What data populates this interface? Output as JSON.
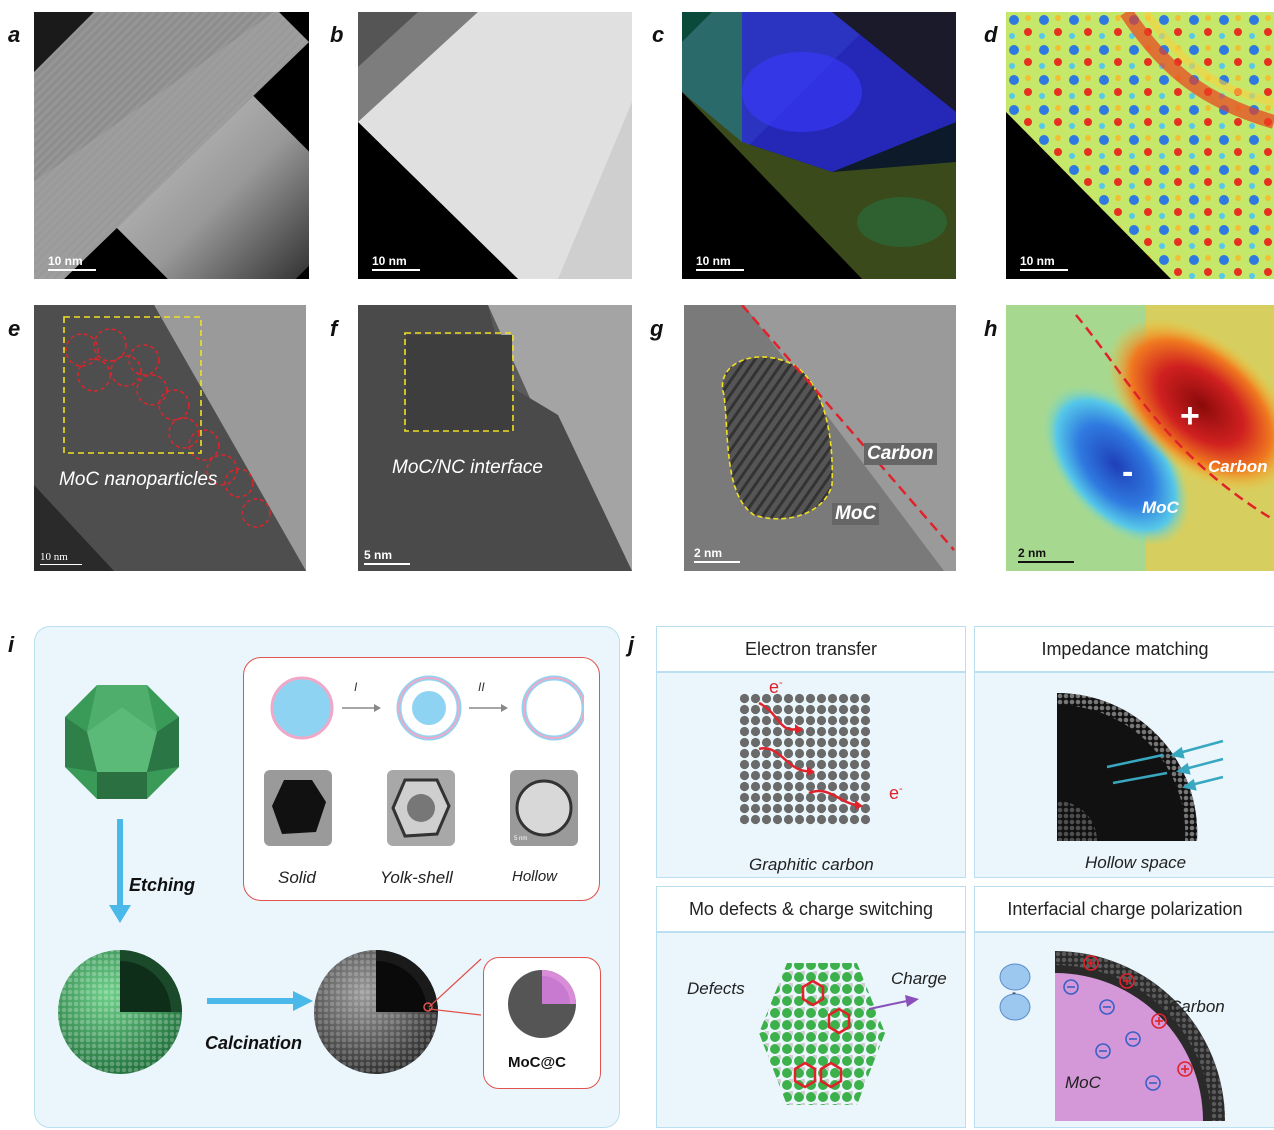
{
  "panel_labels": {
    "a": "a",
    "b": "b",
    "c": "c",
    "d": "d",
    "e": "e",
    "f": "f",
    "g": "g",
    "h": "h",
    "i": "i",
    "j": "j"
  },
  "scale_bars": {
    "a": "10 nm",
    "b": "10 nm",
    "c": "10 nm",
    "d": "10 nm",
    "e": "10 nm",
    "f": "5 nm",
    "g": "2 nm",
    "h": "2 nm"
  },
  "panel_e": {
    "label": "MoC nanoparticles"
  },
  "panel_f": {
    "label": "MoC/NC interface"
  },
  "panel_g": {
    "carbon": "Carbon",
    "moc": "MoC"
  },
  "panel_h": {
    "plus": "+",
    "minus": "-",
    "carbon": "Carbon",
    "moc": "MoC"
  },
  "panel_i": {
    "step1": "I",
    "step2": "II",
    "solid": "Solid",
    "yolk": "Yolk-shell",
    "hollow": "Hollow",
    "etching": "Etching",
    "calcination": "Calcination",
    "product": "MoC@C",
    "tem_scale": "5 nm"
  },
  "panel_j": {
    "electron_title": "Electron transfer",
    "electron_e1": "e",
    "electron_e2": "e",
    "electron_sup": "-",
    "electron_caption": "Graphitic carbon",
    "impedance_title": "Impedance matching",
    "impedance_caption": "Hollow space",
    "defects_title": "Mo defects & charge switching",
    "defects_label": "Defects",
    "charge_label": "Charge",
    "polar_title": "Interfacial charge polarization",
    "polar_carbon": "Carbon",
    "polar_moc": "MoC",
    "polar_minus": "-"
  },
  "colors": {
    "dashed_red": "#e0232a",
    "dashed_yellow": "#f0e020",
    "arrow_blue": "#4ab8e8",
    "frame_red": "#e0534f",
    "panel_bg": "#eaf6fb"
  }
}
